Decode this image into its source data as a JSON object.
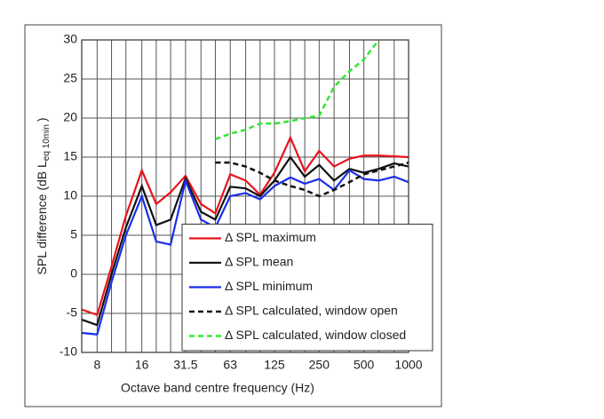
{
  "chart_data": {
    "type": "line",
    "y_label": {
      "text": "SPL difference (dB L",
      "subscript": "eq 10min",
      "suffix": ")"
    },
    "x_label": "Octave band centre frequency (Hz)",
    "x": [
      6.3,
      8,
      10,
      12.5,
      16,
      20,
      25,
      31.5,
      40,
      50,
      63,
      80,
      100,
      125,
      160,
      200,
      250,
      315,
      400,
      500,
      630,
      800,
      1000
    ],
    "xlim": [
      6.3,
      1000
    ],
    "xscale": "log",
    "xticks": [
      8,
      16,
      31.5,
      63,
      125,
      250,
      500,
      1000
    ],
    "ylim": [
      -10,
      30
    ],
    "yticks": [
      -10,
      -5,
      0,
      5,
      10,
      15,
      20,
      25,
      30
    ],
    "grid": true,
    "legend": "lower right",
    "series": [
      {
        "name": "Δ SPL maximum",
        "color": "#e8141b",
        "dash": false,
        "values": [
          -4.5,
          -5.2,
          1,
          7.5,
          13.3,
          9,
          10.5,
          12.6,
          9,
          7.8,
          12.8,
          12,
          10.2,
          13,
          17.5,
          13.2,
          15.8,
          13.8,
          14.8,
          15.2,
          15.2,
          15.1,
          15
        ]
      },
      {
        "name": "Δ SPL mean",
        "color": "#111111",
        "dash": false,
        "values": [
          -5.8,
          -6.5,
          0,
          6,
          11.3,
          6.3,
          7,
          12.3,
          8,
          7,
          11.2,
          11,
          10,
          12,
          15,
          12.5,
          14,
          12,
          13.5,
          13,
          13.5,
          14.2,
          13.8
        ]
      },
      {
        "name": "Δ SPL minimum",
        "color": "#1a2ee8",
        "dash": false,
        "values": [
          -7.5,
          -7.7,
          -1,
          5,
          10,
          4.2,
          3.8,
          12,
          7,
          6,
          10,
          10.4,
          9.6,
          11.3,
          12.4,
          11.6,
          12.2,
          10.8,
          13.3,
          12.2,
          12,
          12.5,
          11.8
        ]
      },
      {
        "name": "Δ SPL calculated, window open",
        "color": "#111111",
        "dash": true,
        "values": [
          null,
          null,
          null,
          null,
          null,
          null,
          null,
          null,
          null,
          14.3,
          14.3,
          13.8,
          13,
          12,
          11.3,
          10.8,
          10,
          10.8,
          11.8,
          12.8,
          13.3,
          13.8,
          14.3
        ]
      },
      {
        "name": "Δ SPL calculated, window closed",
        "color": "#33e533",
        "dash": true,
        "values": [
          null,
          null,
          null,
          null,
          null,
          null,
          null,
          null,
          null,
          17.3,
          18,
          18.5,
          19.3,
          19.3,
          19.6,
          20,
          20.3,
          24,
          26,
          27.5,
          30,
          null,
          null
        ]
      }
    ]
  }
}
